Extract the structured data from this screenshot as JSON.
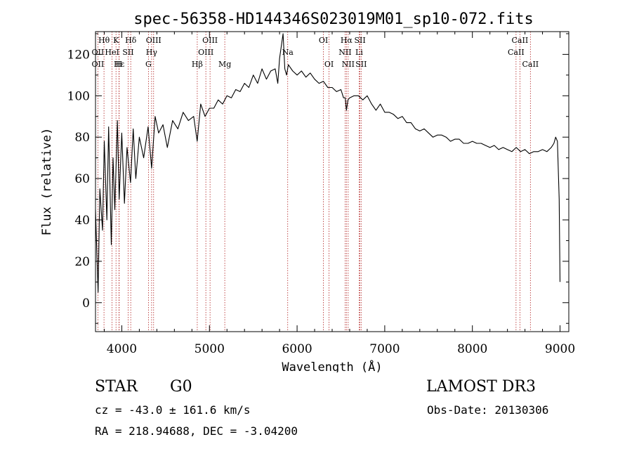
{
  "colors": {
    "spectrum": "#000000",
    "lines": "#b22222",
    "axes": "#000000",
    "background": "#ffffff"
  },
  "chart_data": {
    "type": "line",
    "title": "spec-56358-HD144346S023019M01_sp10-072.fits",
    "xlabel": "Wavelength (Å)",
    "ylabel": "Flux (relative)",
    "xlim": [
      3700,
      9100
    ],
    "ylim": [
      -14,
      131
    ],
    "x_ticks": [
      4000,
      5000,
      6000,
      7000,
      8000,
      9000
    ],
    "y_ticks": [
      0,
      20,
      40,
      60,
      80,
      100,
      120
    ],
    "series": [
      {
        "name": "flux",
        "x": [
          3700,
          3730,
          3750,
          3780,
          3800,
          3830,
          3850,
          3880,
          3900,
          3920,
          3950,
          3970,
          4000,
          4030,
          4060,
          4100,
          4130,
          4160,
          4200,
          4250,
          4300,
          4340,
          4380,
          4420,
          4470,
          4520,
          4580,
          4640,
          4700,
          4760,
          4820,
          4860,
          4900,
          4950,
          5000,
          5050,
          5100,
          5150,
          5200,
          5250,
          5300,
          5350,
          5400,
          5450,
          5500,
          5550,
          5600,
          5650,
          5700,
          5750,
          5780,
          5800,
          5820,
          5840,
          5860,
          5880,
          5900,
          5950,
          6000,
          6050,
          6100,
          6150,
          6200,
          6250,
          6300,
          6350,
          6400,
          6450,
          6500,
          6530,
          6550,
          6563,
          6580,
          6600,
          6650,
          6700,
          6750,
          6800,
          6850,
          6900,
          6950,
          7000,
          7050,
          7100,
          7150,
          7200,
          7250,
          7300,
          7350,
          7400,
          7450,
          7500,
          7550,
          7600,
          7650,
          7700,
          7750,
          7800,
          7850,
          7900,
          7950,
          8000,
          8050,
          8100,
          8150,
          8200,
          8250,
          8300,
          8350,
          8400,
          8450,
          8500,
          8550,
          8600,
          8650,
          8700,
          8750,
          8800,
          8850,
          8900,
          8930,
          8950,
          8970,
          8990,
          9000
        ],
        "y": [
          45,
          5,
          55,
          35,
          78,
          40,
          85,
          28,
          70,
          45,
          88,
          50,
          82,
          48,
          75,
          58,
          84,
          60,
          80,
          70,
          85,
          65,
          90,
          82,
          86,
          75,
          88,
          84,
          92,
          88,
          90,
          78,
          96,
          90,
          94,
          94,
          98,
          96,
          100,
          99,
          103,
          102,
          106,
          104,
          110,
          106,
          113,
          108,
          112,
          113,
          106,
          118,
          124,
          130,
          113,
          110,
          115,
          112,
          110,
          112,
          109,
          111,
          108,
          106,
          107,
          104,
          104,
          102,
          103,
          99,
          99,
          93,
          98,
          99,
          100,
          100,
          98,
          100,
          96,
          93,
          96,
          92,
          92,
          91,
          89,
          90,
          87,
          87,
          84,
          83,
          84,
          82,
          80,
          81,
          81,
          80,
          78,
          79,
          79,
          77,
          77,
          78,
          77,
          77,
          76,
          75,
          76,
          74,
          75,
          74,
          73,
          75,
          73,
          74,
          72,
          73,
          73,
          74,
          73,
          75,
          77,
          80,
          78,
          50,
          10
        ]
      }
    ],
    "line_markers": {
      "top": [
        {
          "label": "Hθ",
          "x": 3797
        },
        {
          "label": "K",
          "x": 3934
        },
        {
          "label": "Hδ",
          "x": 4102
        },
        {
          "label": "OIII",
          "x": 4363
        },
        {
          "label": "OIII",
          "x": 5007
        },
        {
          "label": "OI",
          "x": 6300
        },
        {
          "label": "Hα",
          "x": 6563
        },
        {
          "label": "SII",
          "x": 6717
        },
        {
          "label": "CaII",
          "x": 8542
        }
      ],
      "mid": [
        {
          "label": "OII",
          "x": 3727
        },
        {
          "label": "HeI",
          "x": 3889
        },
        {
          "label": "SII",
          "x": 4072
        },
        {
          "label": "Hγ",
          "x": 4340
        },
        {
          "label": "OIII",
          "x": 4959
        },
        {
          "label": "Na",
          "x": 5893
        },
        {
          "label": "NII",
          "x": 6548
        },
        {
          "label": "Li",
          "x": 6708
        },
        {
          "label": "CaII",
          "x": 8498
        }
      ],
      "low": [
        {
          "label": "OII",
          "x": 3727
        },
        {
          "label": "Hε",
          "x": 3970
        },
        {
          "label": "H",
          "x": 3968
        },
        {
          "label": "G",
          "x": 4304
        },
        {
          "label": "Hβ",
          "x": 4861
        },
        {
          "label": "Mg",
          "x": 5175
        },
        {
          "label": "OI",
          "x": 6364
        },
        {
          "label": "NII",
          "x": 6583
        },
        {
          "label": "SII",
          "x": 6731
        },
        {
          "label": "CaII",
          "x": 8662
        }
      ]
    }
  },
  "info": {
    "class": "STAR",
    "subclass": "G0",
    "survey": "LAMOST DR3",
    "cz": "cz = -43.0 ± 161.6 km/s",
    "obs_date": "Obs-Date: 20130306",
    "radec": "RA = 218.94688, DEC =  -3.04200"
  }
}
